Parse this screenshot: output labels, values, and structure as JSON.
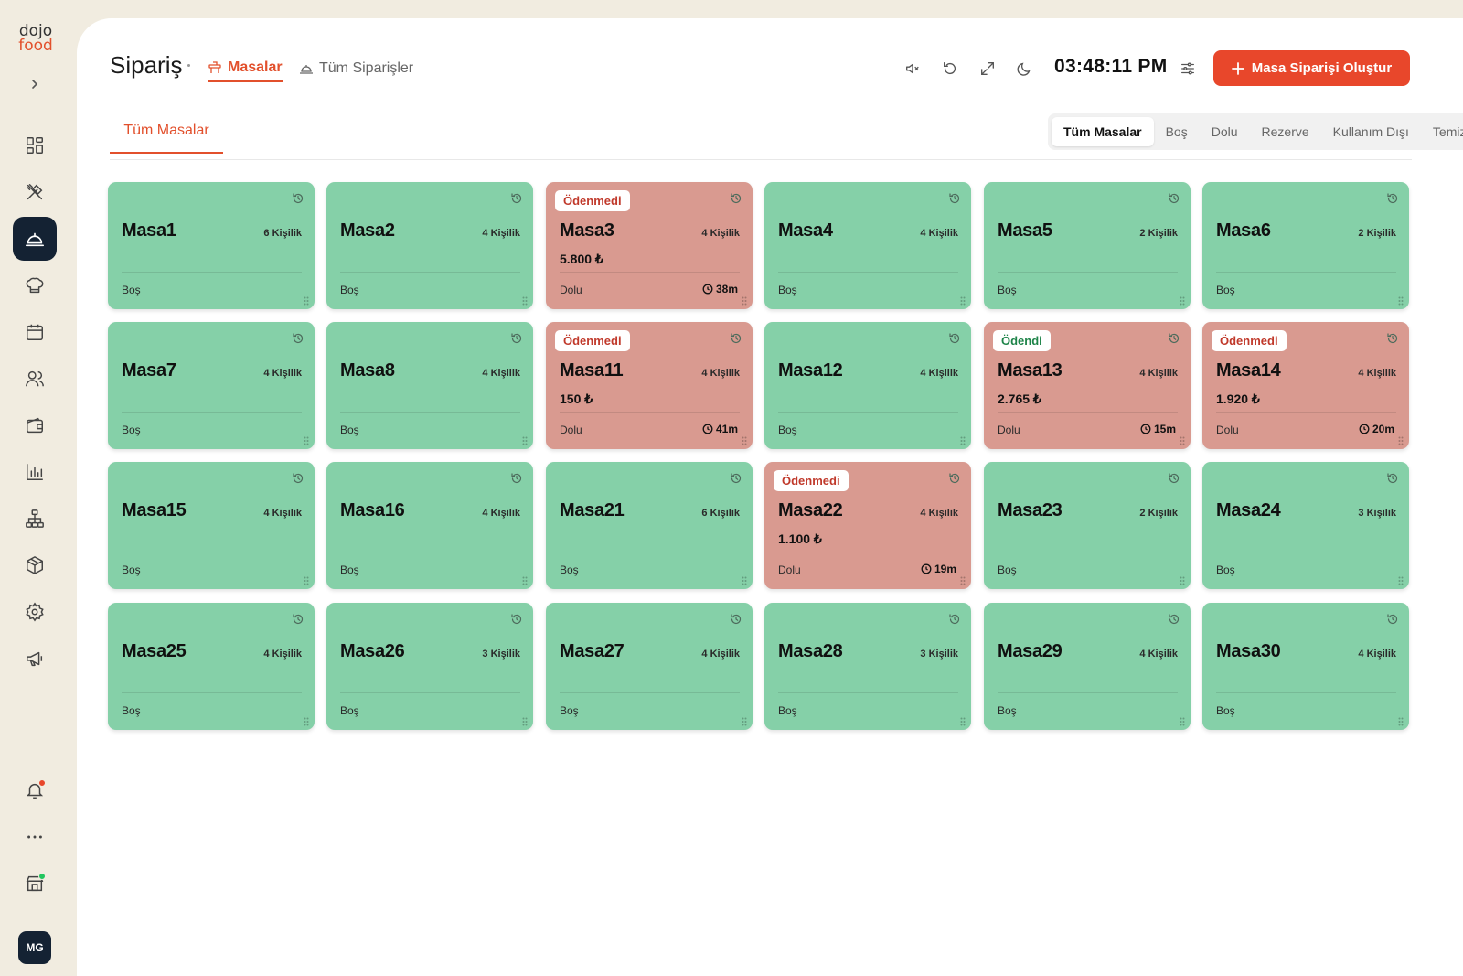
{
  "logo": {
    "line1": "dojo",
    "line2": "food"
  },
  "sidebar": {
    "items": [
      {
        "name": "dashboard-icon"
      },
      {
        "name": "utensils-icon"
      },
      {
        "name": "service-bell-icon",
        "active": true
      },
      {
        "name": "chef-hat-icon"
      },
      {
        "name": "calendar-icon"
      },
      {
        "name": "users-icon"
      },
      {
        "name": "wallet-icon"
      },
      {
        "name": "bar-chart-icon"
      },
      {
        "name": "org-chart-icon"
      },
      {
        "name": "package-icon"
      },
      {
        "name": "settings-icon"
      },
      {
        "name": "megaphone-icon"
      }
    ],
    "bottom": [
      {
        "name": "bell-icon",
        "dot_color": "#e8472b"
      },
      {
        "name": "more-icon"
      },
      {
        "name": "store-icon",
        "dot_color": "#22c55e"
      }
    ],
    "avatar": "MG"
  },
  "header": {
    "title": "Sipariş",
    "tabs": [
      {
        "label": "Masalar",
        "active": true,
        "icon": "table-icon"
      },
      {
        "label": "Tüm Siparişler",
        "active": false,
        "icon": "service-bell-icon"
      }
    ],
    "clock": "03:48:11 PM",
    "create_button": "Masa Siparişi Oluştur"
  },
  "area_tab": "Tüm Masalar",
  "filters": [
    "Tüm Masalar",
    "Boş",
    "Dolu",
    "Rezerve",
    "Kullanım Dışı",
    "Temizlik"
  ],
  "active_filter": 0,
  "colors": {
    "accent": "#e8472b",
    "free": "#85d0a8",
    "busy": "#d99a90",
    "sidebar_active": "#142233"
  },
  "tables": [
    {
      "name": "Masa1",
      "capacity": "6 Kişilik",
      "status": "Boş"
    },
    {
      "name": "Masa2",
      "capacity": "4 Kişilik",
      "status": "Boş"
    },
    {
      "name": "Masa3",
      "capacity": "4 Kişilik",
      "status": "Dolu",
      "badge": "Ödenmedi",
      "amount": "5.800 ₺",
      "duration": "38m"
    },
    {
      "name": "Masa4",
      "capacity": "4 Kişilik",
      "status": "Boş"
    },
    {
      "name": "Masa5",
      "capacity": "2 Kişilik",
      "status": "Boş"
    },
    {
      "name": "Masa6",
      "capacity": "2 Kişilik",
      "status": "Boş"
    },
    {
      "name": "Masa7",
      "capacity": "4 Kişilik",
      "status": "Boş"
    },
    {
      "name": "Masa8",
      "capacity": "4 Kişilik",
      "status": "Boş"
    },
    {
      "name": "Masa11",
      "capacity": "4 Kişilik",
      "status": "Dolu",
      "badge": "Ödenmedi",
      "amount": "150 ₺",
      "duration": "41m"
    },
    {
      "name": "Masa12",
      "capacity": "4 Kişilik",
      "status": "Boş"
    },
    {
      "name": "Masa13",
      "capacity": "4 Kişilik",
      "status": "Dolu",
      "badge": "Ödendi",
      "amount": "2.765 ₺",
      "duration": "15m"
    },
    {
      "name": "Masa14",
      "capacity": "4 Kişilik",
      "status": "Dolu",
      "badge": "Ödenmedi",
      "amount": "1.920 ₺",
      "duration": "20m"
    },
    {
      "name": "Masa15",
      "capacity": "4 Kişilik",
      "status": "Boş"
    },
    {
      "name": "Masa16",
      "capacity": "4 Kişilik",
      "status": "Boş"
    },
    {
      "name": "Masa21",
      "capacity": "6 Kişilik",
      "status": "Boş"
    },
    {
      "name": "Masa22",
      "capacity": "4 Kişilik",
      "status": "Dolu",
      "badge": "Ödenmedi",
      "amount": "1.100 ₺",
      "duration": "19m"
    },
    {
      "name": "Masa23",
      "capacity": "2 Kişilik",
      "status": "Boş"
    },
    {
      "name": "Masa24",
      "capacity": "3 Kişilik",
      "status": "Boş"
    },
    {
      "name": "Masa25",
      "capacity": "4 Kişilik",
      "status": "Boş"
    },
    {
      "name": "Masa26",
      "capacity": "3 Kişilik",
      "status": "Boş"
    },
    {
      "name": "Masa27",
      "capacity": "4 Kişilik",
      "status": "Boş"
    },
    {
      "name": "Masa28",
      "capacity": "3 Kişilik",
      "status": "Boş"
    },
    {
      "name": "Masa29",
      "capacity": "4 Kişilik",
      "status": "Boş"
    },
    {
      "name": "Masa30",
      "capacity": "4 Kişilik",
      "status": "Boş"
    }
  ]
}
